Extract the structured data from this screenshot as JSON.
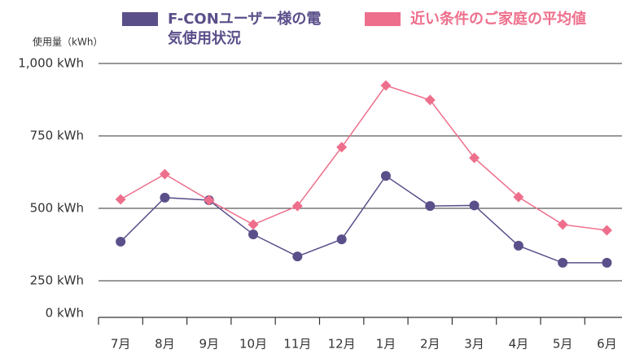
{
  "chart_data": {
    "type": "line",
    "y_axis_label": "使用量（kWh）",
    "categories": [
      "7月",
      "8月",
      "9月",
      "10月",
      "11月",
      "12月",
      "1月",
      "2月",
      "3月",
      "4月",
      "5月",
      "6月"
    ],
    "series": [
      {
        "name": "F-CONユーザー様の電気使用状況",
        "color": "#5b4f8a",
        "marker": "circle",
        "values": [
          385,
          537,
          528,
          410,
          334,
          393,
          612,
          508,
          510,
          371,
          312,
          312
        ]
      },
      {
        "name": "近い条件のご家庭の平均値",
        "color": "#ee6f8c",
        "marker": "diamond",
        "values": [
          531,
          618,
          528,
          444,
          508,
          711,
          924,
          874,
          674,
          539,
          444,
          424
        ]
      }
    ],
    "ylim": [
      250,
      1000
    ],
    "yticks": [
      {
        "value": 0,
        "label": "0 kWh"
      },
      {
        "value": 250,
        "label": "250 kWh"
      },
      {
        "value": 500,
        "label": "500 kWh"
      },
      {
        "value": 750,
        "label": "750 kWh"
      },
      {
        "value": 1000,
        "label": "1,000 kWh"
      }
    ],
    "grid": true
  }
}
